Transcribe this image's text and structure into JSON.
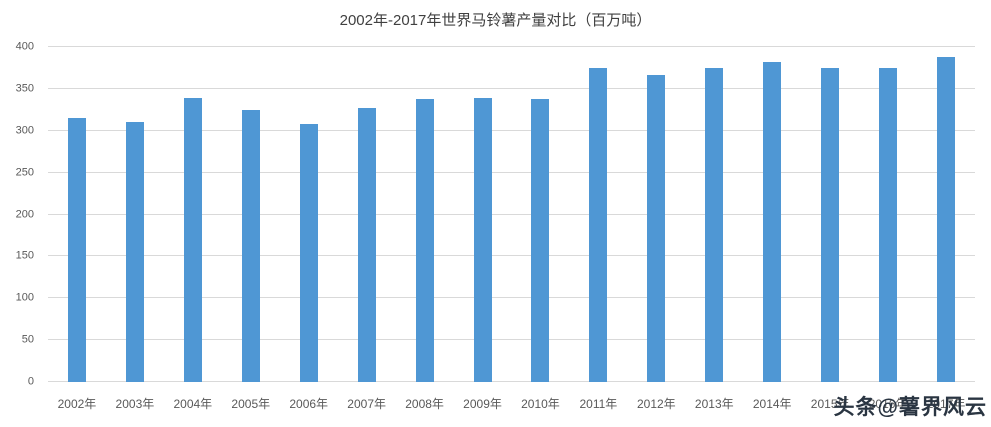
{
  "chart_data": {
    "type": "bar",
    "title": "2002年-2017年世界马铃薯产量对比（百万吨）",
    "categories": [
      "2002年",
      "2003年",
      "2004年",
      "2005年",
      "2006年",
      "2007年",
      "2008年",
      "2009年",
      "2010年",
      "2011年",
      "2012年",
      "2013年",
      "2014年",
      "2015年",
      "2016年",
      "2017年"
    ],
    "values": [
      315,
      311,
      339,
      325,
      308,
      327,
      338,
      339,
      338,
      375,
      367,
      375,
      382,
      375,
      375,
      388
    ],
    "xlabel": "",
    "ylabel": "",
    "ylim": [
      0,
      400
    ],
    "yticks": [
      0,
      50,
      100,
      150,
      200,
      250,
      300,
      350,
      400
    ],
    "grid": true,
    "legend_position": "none",
    "bar_color": "#4f97d4",
    "grid_color": "#d9d9d9",
    "text_color": "#595959"
  },
  "watermark": {
    "text": "头条@薯界风云"
  }
}
